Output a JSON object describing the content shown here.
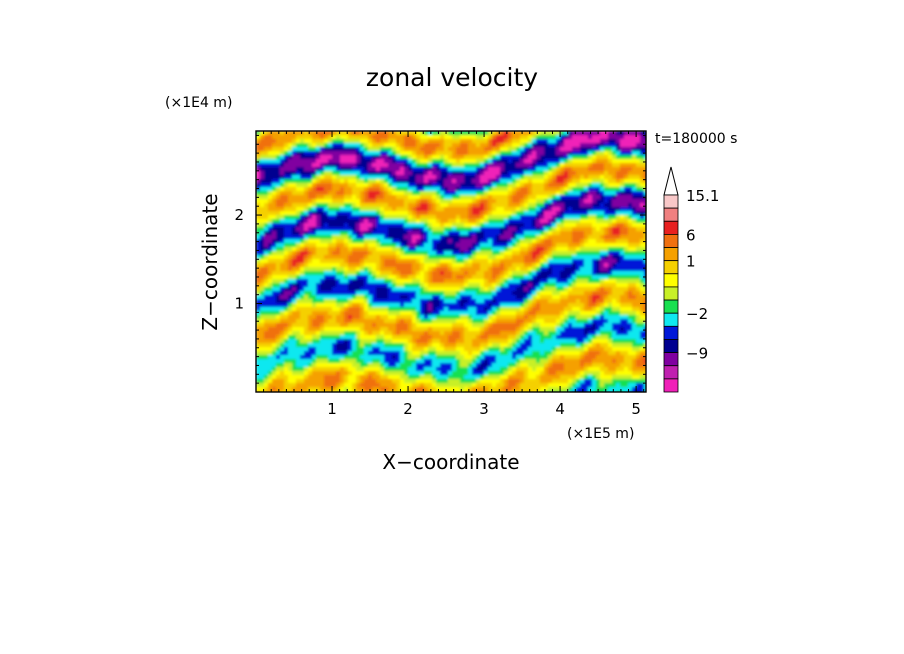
{
  "chart_data": {
    "type": "heatmap",
    "title": "zonal velocity",
    "xlabel": "X−coordinate",
    "ylabel": "Z−coordinate",
    "x_unit_label": "(×1E5 m)",
    "y_unit_label": "(×1E4 m)",
    "time_label": "t=180000 s",
    "xlim": [
      0,
      5.13
    ],
    "ylim": [
      0,
      2.95
    ],
    "x_ticks": [
      1,
      2,
      3,
      4,
      5
    ],
    "y_ticks": [
      1,
      2
    ],
    "x_tick_labels": [
      "1",
      "2",
      "3",
      "4",
      "5"
    ],
    "y_tick_labels": [
      "1",
      "2"
    ],
    "grid": false,
    "colorbar": {
      "levels_top_to_bottom": [
        15.1,
        12,
        9,
        6,
        3,
        1,
        0.5,
        -0.5,
        -1,
        -2,
        -4,
        -6,
        -9,
        -12
      ],
      "tick_labels": [
        "15.1",
        "6",
        "1",
        "−2",
        "−9"
      ],
      "tick_values": [
        15.1,
        6,
        1,
        -2,
        -9
      ],
      "colors_top_to_bottom": [
        "#f8c8c8",
        "#f08080",
        "#e82020",
        "#f07010",
        "#f5a000",
        "#f5d000",
        "#ffff00",
        "#c8f028",
        "#18e050",
        "#10e8f0",
        "#0018d8",
        "#000090",
        "#8000a0",
        "#c020b0",
        "#f020b8"
      ],
      "extend": "max"
    },
    "field_palette": [
      "#f020b8",
      "#8000a0",
      "#000090",
      "#0018d8",
      "#10e8f0",
      "#18e050",
      "#c8f028",
      "#ffff00",
      "#f5d000",
      "#f5a000",
      "#f07010",
      "#e82020"
    ]
  }
}
